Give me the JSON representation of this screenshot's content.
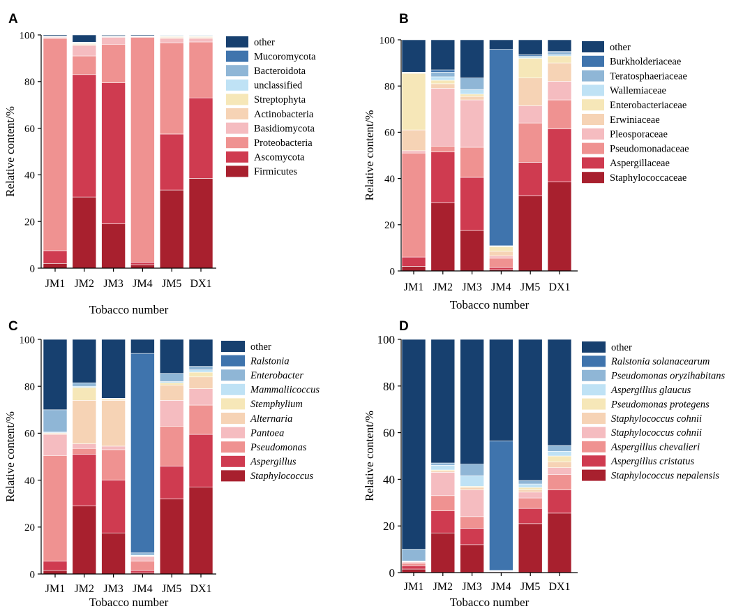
{
  "colors": {
    "other": "#17406f",
    "c2": "#3f74ad",
    "c3": "#8fb6d6",
    "c4": "#bfe2f5",
    "c5": "#f6e7b8",
    "c6": "#f6d3b5",
    "c7": "#f5bcc0",
    "c8": "#ef9291",
    "c9": "#cf3b50",
    "c10": "#a8202e"
  },
  "chart_data": [
    {
      "type": "bar",
      "stacked": true,
      "panel_label": "A",
      "xlabel": "Tobacco number",
      "ylabel": "Relative content/%",
      "ylim": [
        0,
        100
      ],
      "yticks": [
        0,
        20,
        40,
        60,
        80,
        100
      ],
      "categories": [
        "JM1",
        "JM2",
        "JM3",
        "JM4",
        "JM5",
        "DX1"
      ],
      "legend_italic": false,
      "series": [
        {
          "name": "Firmicutes",
          "color_key": "c10",
          "values": [
            2.0,
            30.5,
            19.0,
            1.5,
            33.5,
            38.5
          ]
        },
        {
          "name": "Ascomycota",
          "color_key": "c9",
          "values": [
            5.5,
            52.5,
            60.5,
            1.0,
            24.0,
            34.5
          ]
        },
        {
          "name": "Proteobacteria",
          "color_key": "c8",
          "values": [
            91.0,
            8.0,
            16.5,
            96.5,
            39.0,
            24.0
          ]
        },
        {
          "name": "Basidiomycota",
          "color_key": "c7",
          "values": [
            0.5,
            4.5,
            3.0,
            0.2,
            2.0,
            1.5
          ]
        },
        {
          "name": "Actinobacteria",
          "color_key": "c6",
          "values": [
            0.2,
            0.5,
            0.2,
            0.1,
            0.5,
            0.5
          ]
        },
        {
          "name": "Streptophyta",
          "color_key": "c5",
          "values": [
            0.1,
            0.3,
            0.1,
            0.1,
            0.3,
            0.3
          ]
        },
        {
          "name": "unclassified",
          "color_key": "c4",
          "values": [
            0.1,
            0.3,
            0.1,
            0.1,
            0.3,
            0.3
          ]
        },
        {
          "name": "Bacteroidota",
          "color_key": "c3",
          "values": [
            0.1,
            0.2,
            0.1,
            0.1,
            0.2,
            0.2
          ]
        },
        {
          "name": "Mucoromycota",
          "color_key": "c2",
          "values": [
            0.0,
            0.1,
            0.0,
            0.0,
            0.0,
            0.0
          ]
        },
        {
          "name": "other",
          "color_key": "other",
          "values": [
            0.5,
            3.1,
            0.4,
            0.4,
            0.2,
            0.2
          ]
        }
      ]
    },
    {
      "type": "bar",
      "stacked": true,
      "panel_label": "B",
      "xlabel": "Tobacco number",
      "ylabel": "Relative content/%",
      "ylim": [
        0,
        100
      ],
      "yticks": [
        0,
        20,
        40,
        60,
        80,
        100
      ],
      "categories": [
        "JM1",
        "JM2",
        "JM3",
        "JM4",
        "JM5",
        "DX1"
      ],
      "legend_italic": false,
      "series": [
        {
          "name": "Staphylococcaceae",
          "color_key": "c10",
          "values": [
            2.0,
            29.5,
            17.5,
            0.5,
            32.5,
            38.5
          ]
        },
        {
          "name": "Aspergillaceae",
          "color_key": "c9",
          "values": [
            4.0,
            22.0,
            23.0,
            1.0,
            14.5,
            23.0
          ]
        },
        {
          "name": "Pseudomonadaceae",
          "color_key": "c8",
          "values": [
            45.0,
            2.5,
            13.0,
            4.0,
            17.0,
            12.5
          ]
        },
        {
          "name": "Pleosporaceae",
          "color_key": "c7",
          "values": [
            1.0,
            25.0,
            20.5,
            1.0,
            7.5,
            8.0
          ]
        },
        {
          "name": "Erwiniaceae",
          "color_key": "c6",
          "values": [
            9.0,
            2.0,
            1.5,
            2.0,
            12.0,
            8.0
          ]
        },
        {
          "name": "Enterobacteriaceae",
          "color_key": "c5",
          "values": [
            24.5,
            1.5,
            1.0,
            2.0,
            8.5,
            3.0
          ]
        },
        {
          "name": "Wallemiaceae",
          "color_key": "c4",
          "values": [
            0.3,
            1.5,
            2.0,
            0.2,
            0.5,
            0.5
          ]
        },
        {
          "name": "Teratosphaeriaceae",
          "color_key": "c3",
          "values": [
            0.2,
            2.0,
            5.0,
            0.2,
            0.5,
            1.0
          ]
        },
        {
          "name": "Burkholderiaceae",
          "color_key": "c2",
          "values": [
            0.0,
            1.0,
            0.0,
            85.0,
            0.5,
            0.5
          ]
        },
        {
          "name": "other",
          "color_key": "other",
          "values": [
            14.0,
            13.0,
            16.5,
            4.1,
            6.5,
            5.0
          ]
        }
      ]
    },
    {
      "type": "bar",
      "stacked": true,
      "panel_label": "C",
      "xlabel": "Tobacco number",
      "ylabel": "Relative content/%",
      "ylim": [
        0,
        100
      ],
      "yticks": [
        0,
        20,
        40,
        60,
        80,
        100
      ],
      "categories": [
        "JM1",
        "JM2",
        "JM3",
        "JM4",
        "JM5",
        "DX1"
      ],
      "legend_italic": true,
      "series": [
        {
          "name": "Staphylococcus",
          "color_key": "c10",
          "values": [
            1.5,
            29.0,
            17.5,
            0.5,
            32.0,
            37.0
          ]
        },
        {
          "name": "Aspergillus",
          "color_key": "c9",
          "values": [
            4.0,
            22.0,
            22.5,
            1.0,
            14.0,
            22.5
          ]
        },
        {
          "name": "Pseudomonas",
          "color_key": "c8",
          "values": [
            45.0,
            2.5,
            13.0,
            4.0,
            17.0,
            12.5
          ]
        },
        {
          "name": "Pantoea",
          "color_key": "c7",
          "values": [
            9.0,
            2.0,
            1.5,
            2.0,
            11.0,
            7.0
          ]
        },
        {
          "name": "Alternaria",
          "color_key": "c6",
          "values": [
            0.5,
            18.5,
            19.5,
            0.2,
            6.5,
            5.0
          ]
        },
        {
          "name": "Stemphylium",
          "color_key": "c5",
          "values": [
            0.2,
            5.5,
            0.5,
            0.1,
            1.0,
            2.0
          ]
        },
        {
          "name": "Mammaliicoccus",
          "color_key": "c4",
          "values": [
            0.3,
            0.5,
            0.2,
            0.2,
            0.5,
            1.0
          ]
        },
        {
          "name": "Enterobacter",
          "color_key": "c3",
          "values": [
            9.5,
            1.5,
            0.2,
            1.0,
            3.5,
            1.5
          ]
        },
        {
          "name": "Ralstonia",
          "color_key": "c2",
          "values": [
            0.0,
            0.0,
            0.0,
            85.0,
            0.0,
            0.0
          ]
        },
        {
          "name": "other",
          "color_key": "other",
          "values": [
            30.0,
            18.5,
            25.1,
            6.0,
            14.5,
            11.5
          ]
        }
      ]
    },
    {
      "type": "bar",
      "stacked": true,
      "panel_label": "D",
      "xlabel": "Tobacco number",
      "ylabel": "Relative content/%",
      "ylim": [
        0,
        100
      ],
      "yticks": [
        0,
        20,
        40,
        60,
        80,
        100
      ],
      "categories": [
        "JM1",
        "JM2",
        "JM3",
        "JM4",
        "JM5",
        "DX1"
      ],
      "legend_italic": true,
      "series": [
        {
          "name": "Staphylococcus nepalensis",
          "color_key": "c10",
          "values": [
            1.5,
            17.0,
            12.0,
            0.3,
            21.0,
            25.5
          ]
        },
        {
          "name": "Aspergillus cristatus",
          "color_key": "c9",
          "values": [
            1.5,
            9.5,
            7.0,
            0.2,
            6.5,
            10.0
          ]
        },
        {
          "name": "Aspergillus chevalieri",
          "color_key": "c8",
          "values": [
            1.0,
            6.5,
            5.0,
            0.1,
            4.5,
            6.5
          ]
        },
        {
          "name": "Staphylococcus cohnii",
          "color_key": "c7",
          "values": [
            0.5,
            10.0,
            11.5,
            0.1,
            2.5,
            3.0
          ]
        },
        {
          "name": "Staphylococcus cohnii",
          "color_key": "c6",
          "values": [
            0.2,
            0.5,
            1.0,
            0.05,
            1.0,
            2.5
          ]
        },
        {
          "name": "Pseudomonas protegens",
          "color_key": "c5",
          "values": [
            0.1,
            0.5,
            0.5,
            0.05,
            1.0,
            2.5
          ]
        },
        {
          "name": "Aspergillus glaucus",
          "color_key": "c4",
          "values": [
            0.2,
            2.0,
            4.5,
            0.05,
            1.5,
            2.0
          ]
        },
        {
          "name": "Pseudomonas oryzihabitans",
          "color_key": "c3",
          "values": [
            5.0,
            1.0,
            5.0,
            0.1,
            1.5,
            2.5
          ]
        },
        {
          "name": "Ralstonia solanacearum",
          "color_key": "c2",
          "values": [
            0.0,
            0.0,
            0.0,
            55.5,
            0.0,
            0.0
          ]
        },
        {
          "name": "other",
          "color_key": "other",
          "values": [
            90.0,
            53.0,
            53.5,
            43.55,
            60.5,
            45.5
          ]
        }
      ]
    }
  ]
}
